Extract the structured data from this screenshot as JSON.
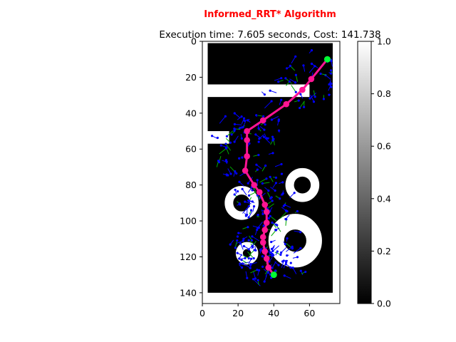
{
  "chart_data": {
    "type": "heatmap",
    "title": "Informed_RRT* Algorithm",
    "subtitle": "Execution time: 7.605 seconds, Cost: 141.738",
    "title_color": "#ff0000",
    "xlim": [
      0,
      77
    ],
    "ylim": [
      146,
      0
    ],
    "x_ticks": [
      "0",
      "20",
      "40",
      "60"
    ],
    "y_ticks": [
      "0",
      "20",
      "40",
      "60",
      "80",
      "100",
      "120",
      "140"
    ],
    "colorbar": {
      "range": [
        0.0,
        1.0
      ],
      "ticks": [
        "0.0",
        "0.2",
        "0.4",
        "0.6",
        "0.8",
        "1.0"
      ],
      "colormap": "gray"
    },
    "start": {
      "x": 40,
      "y": 130,
      "color": "#00ff33"
    },
    "goal": {
      "x": 70,
      "y": 10,
      "color": "#00ff33"
    },
    "path": {
      "color": "#ff1493",
      "points": [
        [
          40,
          130
        ],
        [
          37,
          126
        ],
        [
          36,
          121
        ],
        [
          35,
          117
        ],
        [
          34,
          112
        ],
        [
          34,
          109
        ],
        [
          35,
          105
        ],
        [
          36,
          101
        ],
        [
          36,
          95
        ],
        [
          35,
          91
        ],
        [
          32,
          84
        ],
        [
          29,
          80
        ],
        [
          24,
          72
        ],
        [
          25,
          64
        ],
        [
          25,
          55
        ],
        [
          25,
          50
        ],
        [
          34,
          44
        ],
        [
          47,
          35
        ],
        [
          56,
          27
        ],
        [
          61,
          21
        ],
        [
          70,
          10
        ]
      ]
    },
    "tree_color": "#0000ff",
    "tree_edge_color": "#00aa00"
  }
}
